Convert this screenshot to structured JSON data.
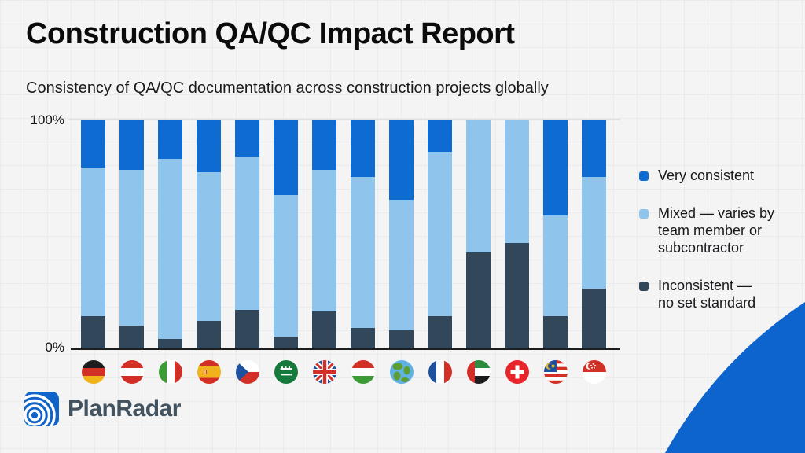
{
  "header": {
    "title": "Construction QA/QC Impact Report",
    "subtitle": "Consistency of QA/QC documentation across construction projects globally"
  },
  "chart_data": {
    "type": "bar",
    "subtype": "stacked-percentage-column",
    "title": "Consistency of QA/QC documentation across construction projects globally",
    "categories": [
      "Germany",
      "Austria",
      "Italy",
      "Spain",
      "Czech Republic",
      "Saudi Arabia",
      "United Kingdom",
      "Hungary",
      "Global",
      "France",
      "United Arab Emirates",
      "Switzerland",
      "Malaysia",
      "Singapore"
    ],
    "flag_icons": [
      "de",
      "at",
      "it",
      "es",
      "cz",
      "sa",
      "gb",
      "hu",
      "world",
      "fr",
      "ae",
      "ch",
      "my",
      "sg"
    ],
    "series": [
      {
        "name": "Very consistent",
        "color": "#0d6bd2",
        "values": [
          21,
          22,
          17,
          23,
          16,
          33,
          22,
          25,
          35,
          14,
          0,
          0,
          42,
          25
        ]
      },
      {
        "name": "Mixed — varies by team member or subcontractor",
        "color": "#8fc4ec",
        "values": [
          65,
          68,
          79,
          65,
          67,
          62,
          62,
          66,
          57,
          72,
          58,
          54,
          44,
          49
        ]
      },
      {
        "name": "Inconsistent — no set standard",
        "color": "#33475a",
        "values": [
          14,
          10,
          4,
          12,
          17,
          5,
          16,
          9,
          8,
          14,
          42,
          46,
          14,
          26
        ]
      }
    ],
    "ylim": [
      0,
      100
    ],
    "y_axis_labels": {
      "top": "100%",
      "bottom": "0%"
    },
    "grid": "top gridline only, dark bottom axis",
    "legend_position": "right"
  },
  "legend": {
    "items": [
      {
        "label": "Very consistent",
        "color": "#0d6bd2"
      },
      {
        "label": "Mixed — varies by\nteam member or\nsubcontractor",
        "color": "#8fc4ec"
      },
      {
        "label": "Inconsistent —\nno set standard",
        "color": "#33475a"
      }
    ]
  },
  "footer": {
    "brand": "PlanRadar"
  },
  "colors": {
    "background": "#f4f4f5",
    "grid_line": "#ebebee",
    "axis_line": "#1d1d1d",
    "top_gridline": "#e0e0e3",
    "very_consistent": "#0d6bd2",
    "mixed": "#8fc4ec",
    "inconsistent": "#33475a",
    "corner_swoosh": "#0d64cc",
    "logo_blue": "#1064c9",
    "brand_text": "#42525f"
  }
}
